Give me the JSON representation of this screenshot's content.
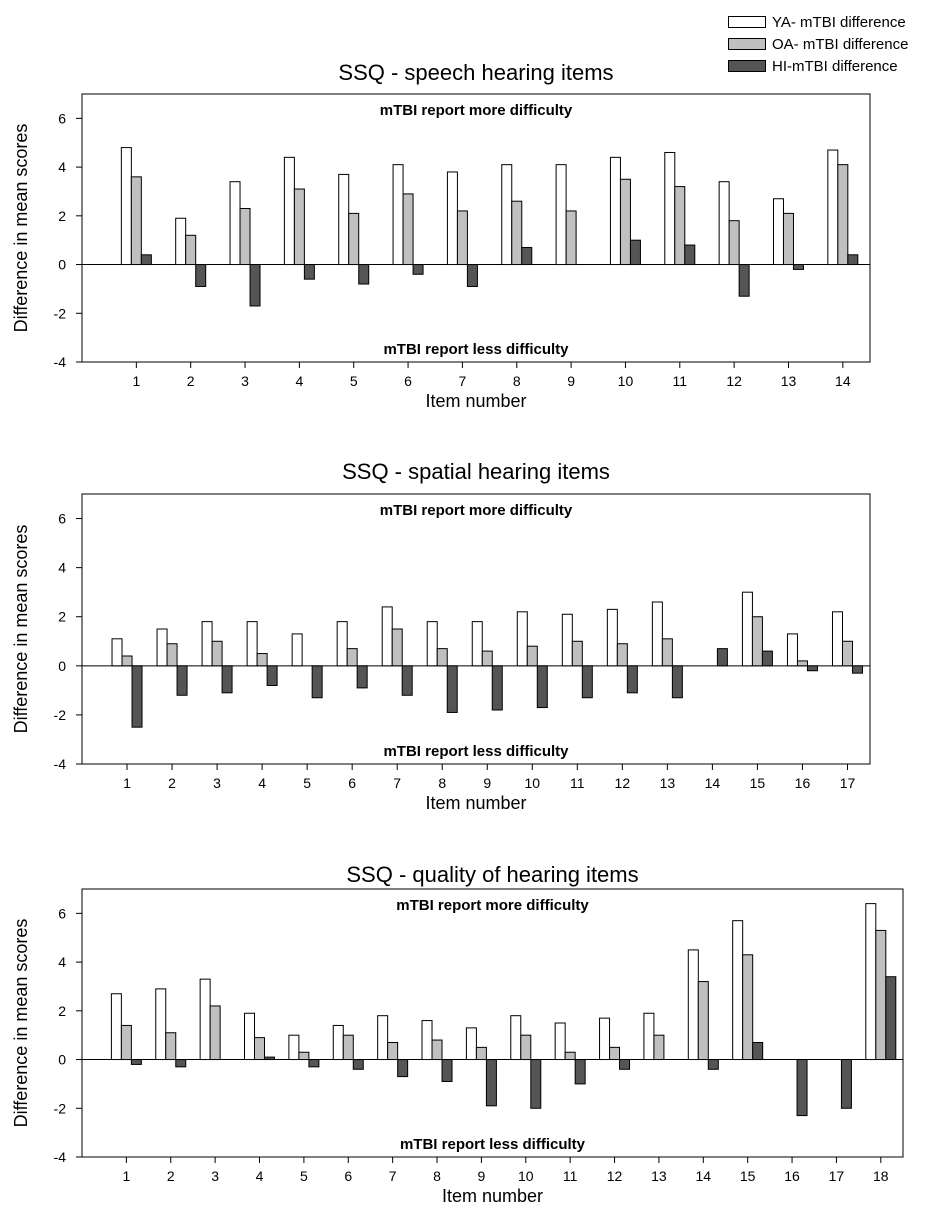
{
  "colors": {
    "ya": "#ffffff",
    "oa": "#c0c0c0",
    "hi": "#555555",
    "axis": "#000000"
  },
  "legend": [
    {
      "key": "ya",
      "label": "YA- mTBI difference"
    },
    {
      "key": "oa",
      "label": "OA- mTBI difference"
    },
    {
      "key": "hi",
      "label": "HI-mTBI difference"
    }
  ],
  "chart_data": [
    {
      "type": "bar",
      "title": "SSQ - speech hearing items",
      "xlabel": "Item number",
      "ylabel": "Difference in mean scores",
      "ylim": [
        -4,
        7
      ],
      "yticks": [
        -4,
        -2,
        0,
        2,
        4,
        6
      ],
      "annotation_top": "mTBI report more difficulty",
      "annotation_bottom": "mTBI report less difficulty",
      "categories": [
        "1",
        "2",
        "3",
        "4",
        "5",
        "6",
        "7",
        "8",
        "9",
        "10",
        "11",
        "12",
        "13",
        "14"
      ],
      "series": [
        {
          "name": "YA- mTBI difference",
          "key": "ya",
          "values": [
            4.8,
            1.9,
            3.4,
            4.4,
            3.7,
            4.1,
            3.8,
            4.1,
            4.1,
            4.4,
            4.6,
            3.4,
            2.7,
            4.7
          ]
        },
        {
          "name": "OA- mTBI difference",
          "key": "oa",
          "values": [
            3.6,
            1.2,
            2.3,
            3.1,
            2.1,
            2.9,
            2.2,
            2.6,
            2.2,
            3.5,
            3.2,
            1.8,
            2.1,
            4.1
          ]
        },
        {
          "name": "HI-mTBI difference",
          "key": "hi",
          "values": [
            0.4,
            -0.9,
            -1.7,
            -0.6,
            -0.8,
            -0.4,
            -0.9,
            0.7,
            0.0,
            1.0,
            0.8,
            -1.3,
            -0.2,
            0.4
          ]
        }
      ]
    },
    {
      "type": "bar",
      "title": "SSQ - spatial hearing items",
      "xlabel": "Item number",
      "ylabel": "Difference in mean scores",
      "ylim": [
        -4,
        7
      ],
      "yticks": [
        -4,
        -2,
        0,
        2,
        4,
        6
      ],
      "annotation_top": "mTBI report more difficulty",
      "annotation_bottom": "mTBI report less difficulty",
      "categories": [
        "1",
        "2",
        "3",
        "4",
        "5",
        "6",
        "7",
        "8",
        "9",
        "10",
        "11",
        "12",
        "13",
        "14",
        "15",
        "16",
        "17"
      ],
      "series": [
        {
          "name": "YA- mTBI difference",
          "key": "ya",
          "values": [
            1.1,
            1.5,
            1.8,
            1.8,
            1.3,
            1.8,
            2.4,
            1.8,
            1.8,
            2.2,
            2.1,
            2.3,
            2.6,
            0.0,
            3.0,
            1.3,
            2.2
          ]
        },
        {
          "name": "OA- mTBI difference",
          "key": "oa",
          "values": [
            0.4,
            0.9,
            1.0,
            0.5,
            0.0,
            0.7,
            1.5,
            0.7,
            0.6,
            0.8,
            1.0,
            0.9,
            1.1,
            0.0,
            2.0,
            0.2,
            1.0
          ]
        },
        {
          "name": "HI-mTBI difference",
          "key": "hi",
          "values": [
            -2.5,
            -1.2,
            -1.1,
            -0.8,
            -1.3,
            -0.9,
            -1.2,
            -1.9,
            -1.8,
            -1.7,
            -1.3,
            -1.1,
            -1.3,
            0.7,
            0.6,
            -0.2,
            -0.3
          ]
        }
      ]
    },
    {
      "type": "bar",
      "title": "SSQ - quality of hearing items",
      "xlabel": "Item number",
      "ylabel": "Difference in mean scores",
      "ylim": [
        -4,
        7
      ],
      "yticks": [
        -4,
        -2,
        0,
        2,
        4,
        6
      ],
      "annotation_top": "mTBI report more difficulty",
      "annotation_bottom": "mTBI report less difficulty",
      "categories": [
        "1",
        "2",
        "3",
        "4",
        "5",
        "6",
        "7",
        "8",
        "9",
        "10",
        "11",
        "12",
        "13",
        "14",
        "15",
        "16",
        "17",
        "18"
      ],
      "series": [
        {
          "name": "YA- mTBI difference",
          "key": "ya",
          "values": [
            2.7,
            2.9,
            3.3,
            1.9,
            1.0,
            1.4,
            1.8,
            1.6,
            1.3,
            1.8,
            1.5,
            1.7,
            1.9,
            4.5,
            5.7,
            0.0,
            0.0,
            6.4
          ]
        },
        {
          "name": "OA- mTBI difference",
          "key": "oa",
          "values": [
            1.4,
            1.1,
            2.2,
            0.9,
            0.3,
            1.0,
            0.7,
            0.8,
            0.5,
            1.0,
            0.3,
            0.5,
            1.0,
            3.2,
            4.3,
            0.0,
            0.0,
            5.3
          ]
        },
        {
          "name": "HI-mTBI difference",
          "key": "hi",
          "values": [
            -0.2,
            -0.3,
            0.0,
            0.1,
            -0.3,
            -0.4,
            -0.7,
            -0.9,
            -1.9,
            -2.0,
            -1.0,
            -0.4,
            0.0,
            -0.4,
            0.7,
            -2.3,
            -2.0,
            3.4
          ]
        }
      ]
    }
  ]
}
